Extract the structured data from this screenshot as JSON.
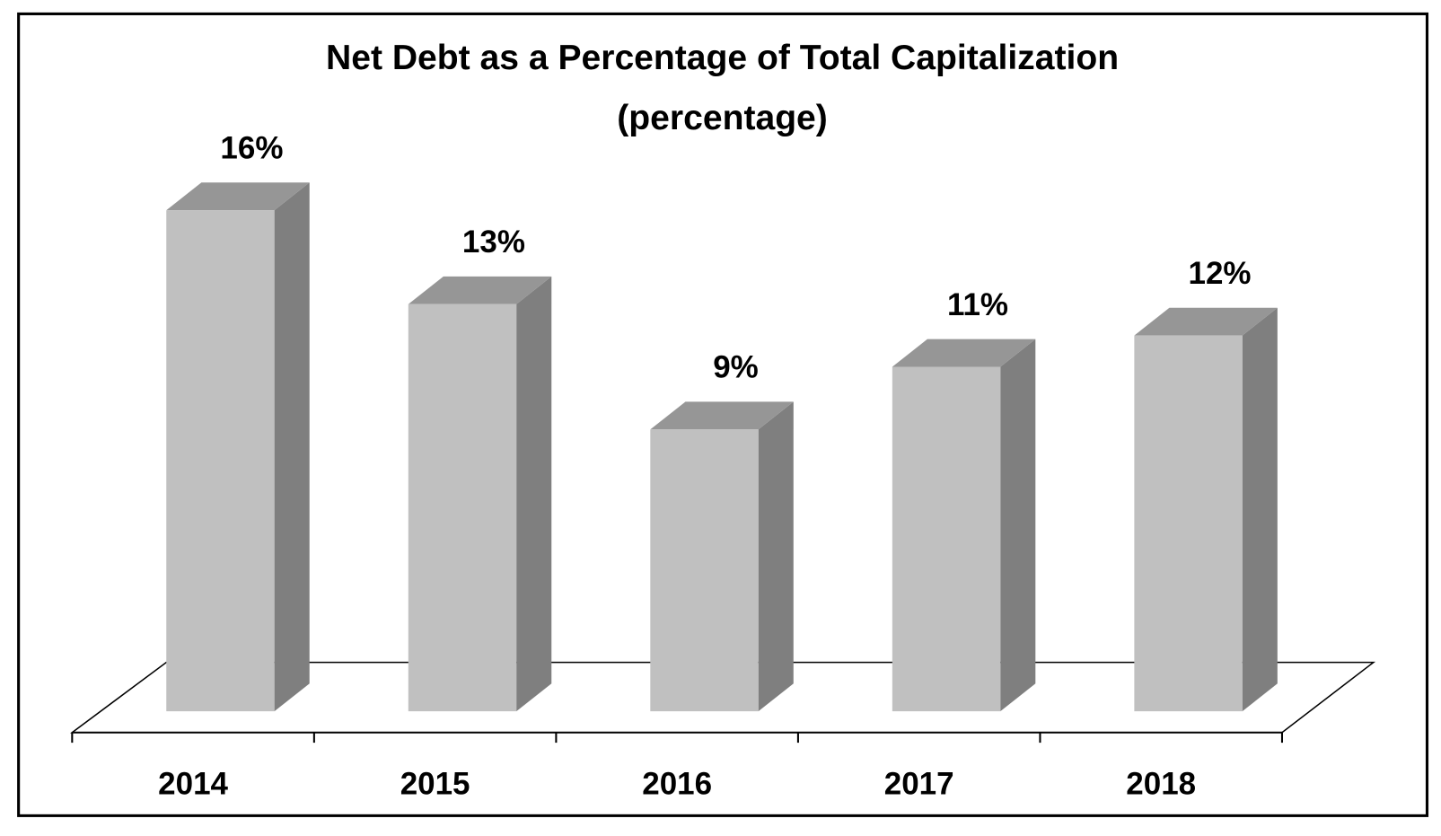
{
  "chart_data": {
    "type": "bar3d",
    "title": "Net Debt as a Percentage of Total Capitalization",
    "subtitle": "(percentage)",
    "categories": [
      "2014",
      "2015",
      "2016",
      "2017",
      "2018"
    ],
    "values": [
      16,
      13,
      9,
      11,
      12
    ],
    "value_labels": [
      "16%",
      "13%",
      "9%",
      "11%",
      "12%"
    ],
    "colors": {
      "front": "#c0c0c0",
      "top": "#969696",
      "side": "#7f7f7f"
    }
  }
}
